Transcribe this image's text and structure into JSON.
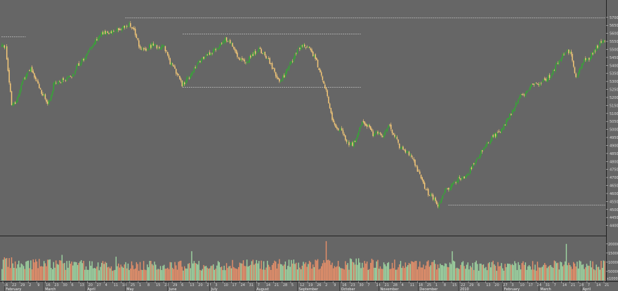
{
  "chart_data": {
    "type": "candlestick",
    "colors": {
      "background": "#666666",
      "up": "#33aa33",
      "down": "#f5c878",
      "volume_up": "#9fd6a2",
      "volume_down": "#e8906a",
      "reference_line": "#bdbdbd",
      "separator": "#222222"
    },
    "price_axis": {
      "ylim": [
        4350,
        5800
      ],
      "ticks": [
        5700,
        5650,
        5600,
        5550,
        5500,
        5450,
        5400,
        5350,
        5300,
        5250,
        5200,
        5150,
        5100,
        5050,
        5000,
        4950,
        4900,
        4850,
        4800,
        4750,
        4700,
        4650,
        4600,
        4550,
        4500,
        4450,
        4400
      ]
    },
    "volume_axis": {
      "ylim": [
        0,
        230000
      ],
      "ticks": [
        200000,
        150000,
        100000,
        50000
      ],
      "unit_label": "x1000"
    },
    "month_labels": [
      "February",
      "March",
      "April",
      "May",
      "June",
      "July",
      "August",
      "September",
      "October",
      "November",
      "December",
      "2010",
      "February",
      "March",
      "April"
    ],
    "day_ticks": [
      "16",
      "22",
      "29",
      "2",
      "9",
      "16",
      "23",
      "30",
      "6",
      "13",
      "20",
      "27",
      "4",
      "11",
      "18",
      "25",
      "1",
      "8",
      "15",
      "22",
      "29",
      "6",
      "13",
      "20",
      "27",
      "3",
      "10",
      "17",
      "24",
      "31",
      "7",
      "14",
      "21",
      "28",
      "5",
      "12",
      "19",
      "26",
      "2",
      "9",
      "16",
      "23",
      "30",
      "7",
      "14",
      "21",
      "28",
      "4",
      "11",
      "18",
      "25",
      "1",
      "8",
      "15",
      "22",
      "29",
      "6",
      "13",
      "20",
      "27",
      "3",
      "10",
      "17",
      "24",
      "31",
      "7",
      "14",
      "21",
      "28",
      "7",
      "14",
      "21"
    ],
    "reference_lines": [
      {
        "level": 5580,
        "from": 0.0,
        "to": 0.04
      },
      {
        "level": 5700,
        "from": 0.205,
        "to": 1.0
      },
      {
        "level": 5600,
        "from": 0.3,
        "to": 0.595
      },
      {
        "level": 5267,
        "from": 0.3,
        "to": 0.595
      },
      {
        "level": 4530,
        "from": 0.74,
        "to": 1.0
      }
    ],
    "price_anchors": [
      [
        0,
        5520
      ],
      [
        3,
        5520
      ],
      [
        8,
        5150
      ],
      [
        12,
        5180
      ],
      [
        18,
        5320
      ],
      [
        24,
        5380
      ],
      [
        30,
        5280
      ],
      [
        37,
        5170
      ],
      [
        40,
        5180
      ],
      [
        43,
        5280
      ],
      [
        48,
        5300
      ],
      [
        53,
        5320
      ],
      [
        59,
        5340
      ],
      [
        63,
        5400
      ],
      [
        69,
        5450
      ],
      [
        74,
        5520
      ],
      [
        82,
        5590
      ],
      [
        90,
        5610
      ],
      [
        98,
        5620
      ],
      [
        106,
        5660
      ],
      [
        111,
        5600
      ],
      [
        115,
        5500
      ],
      [
        119,
        5490
      ],
      [
        125,
        5530
      ],
      [
        130,
        5510
      ],
      [
        134,
        5530
      ],
      [
        140,
        5420
      ],
      [
        146,
        5350
      ],
      [
        150,
        5280
      ],
      [
        155,
        5320
      ],
      [
        162,
        5400
      ],
      [
        167,
        5440
      ],
      [
        174,
        5480
      ],
      [
        180,
        5520
      ],
      [
        186,
        5560
      ],
      [
        192,
        5530
      ],
      [
        197,
        5450
      ],
      [
        203,
        5420
      ],
      [
        208,
        5460
      ],
      [
        213,
        5500
      ],
      [
        219,
        5470
      ],
      [
        224,
        5400
      ],
      [
        229,
        5320
      ],
      [
        232,
        5300
      ],
      [
        236,
        5350
      ],
      [
        240,
        5410
      ],
      [
        245,
        5480
      ],
      [
        250,
        5530
      ],
      [
        256,
        5500
      ],
      [
        261,
        5450
      ],
      [
        265,
        5350
      ],
      [
        270,
        5250
      ],
      [
        275,
        5060
      ],
      [
        280,
        5000
      ],
      [
        284,
        4980
      ],
      [
        289,
        4900
      ],
      [
        294,
        4920
      ],
      [
        299,
        5040
      ],
      [
        305,
        5020
      ],
      [
        309,
        4970
      ],
      [
        313,
        4980
      ],
      [
        318,
        4960
      ],
      [
        322,
        5030
      ],
      [
        327,
        4960
      ],
      [
        332,
        4880
      ],
      [
        337,
        4860
      ],
      [
        342,
        4820
      ],
      [
        347,
        4730
      ],
      [
        353,
        4620
      ],
      [
        358,
        4580
      ],
      [
        363,
        4520
      ],
      [
        368,
        4610
      ],
      [
        373,
        4640
      ],
      [
        378,
        4680
      ],
      [
        383,
        4700
      ],
      [
        388,
        4720
      ],
      [
        393,
        4790
      ],
      [
        398,
        4850
      ],
      [
        403,
        4900
      ],
      [
        409,
        4960
      ],
      [
        415,
        4980
      ],
      [
        421,
        5060
      ],
      [
        426,
        5130
      ],
      [
        431,
        5200
      ],
      [
        437,
        5230
      ],
      [
        442,
        5280
      ],
      [
        447,
        5290
      ],
      [
        453,
        5310
      ],
      [
        458,
        5350
      ],
      [
        463,
        5420
      ],
      [
        468,
        5480
      ],
      [
        471,
        5500
      ],
      [
        474,
        5470
      ],
      [
        478,
        5320
      ],
      [
        481,
        5380
      ],
      [
        484,
        5420
      ],
      [
        489,
        5450
      ],
      [
        494,
        5500
      ],
      [
        498,
        5540
      ],
      [
        502,
        5560
      ]
    ],
    "volume_anchors": [
      [
        0,
        95000
      ],
      [
        100,
        80000
      ],
      [
        200,
        85000
      ],
      [
        300,
        90000
      ],
      [
        400,
        80000
      ],
      [
        502,
        82000
      ]
    ],
    "volume_spikes": [
      [
        3,
        120000
      ],
      [
        50,
        140000
      ],
      [
        95,
        130000
      ],
      [
        158,
        160000
      ],
      [
        270,
        215000
      ],
      [
        375,
        160000
      ],
      [
        470,
        200000
      ]
    ]
  }
}
